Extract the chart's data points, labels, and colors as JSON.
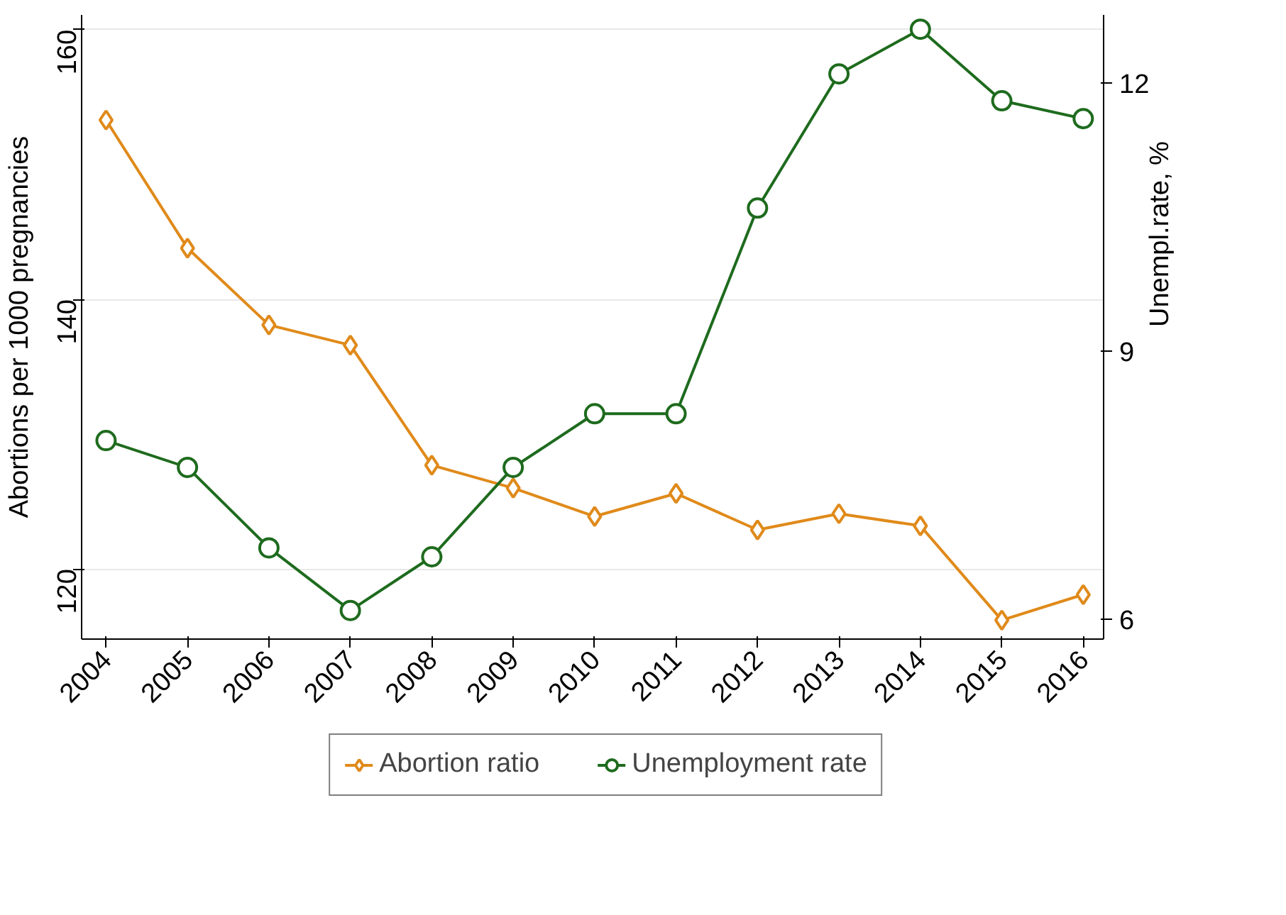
{
  "chart_data": {
    "type": "line",
    "x": [
      2004,
      2005,
      2006,
      2007,
      2008,
      2009,
      2010,
      2011,
      2012,
      2013,
      2014,
      2015,
      2016
    ],
    "xlim": [
      2003.7,
      2016.25
    ],
    "xticks": [
      2004,
      2005,
      2006,
      2007,
      2008,
      2009,
      2010,
      2011,
      2012,
      2013,
      2014,
      2015,
      2016
    ],
    "ylabel": "Abortions per 1000 pregnancies",
    "y2label": "Unempl.rate, %",
    "ylim": [
      114.8,
      161.1
    ],
    "yticks": [
      120,
      140,
      160
    ],
    "y2lim": [
      5.78,
      12.76
    ],
    "y2ticks": [
      6,
      9,
      12
    ],
    "grid": "y",
    "legend": "bottom",
    "line_style": "solid",
    "series": [
      {
        "name": "Abortion ratio",
        "color": "#e08a1a",
        "marker": "diamond",
        "values": [
          153.3,
          143.8,
          138.1,
          136.6,
          127.7,
          126.0,
          123.9,
          125.6,
          122.9,
          124.1,
          123.2,
          116.2,
          118.1
        ]
      },
      {
        "name": "Unemployment rate",
        "color": "#1e6b1e",
        "marker": "circle",
        "axis": "y2",
        "values": [
          8.0,
          7.7,
          6.8,
          6.1,
          6.7,
          7.7,
          8.3,
          8.3,
          10.6,
          12.1,
          12.6,
          11.8,
          11.6
        ]
      }
    ]
  }
}
